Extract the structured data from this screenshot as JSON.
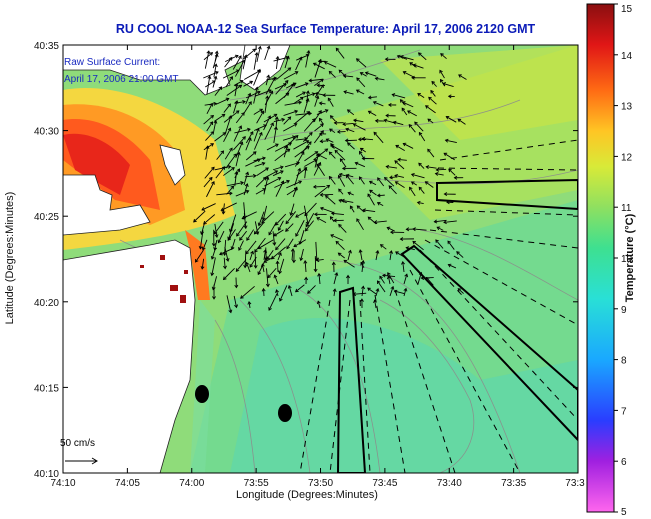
{
  "title": "RU COOL  NOAA-12  Sea Surface Temperature:  April 17, 2006 2120 GMT",
  "inset": {
    "line1": "Raw Surface Current:",
    "line2": "April 17, 2006 21:00 GMT"
  },
  "scale_label": "50 cm/s",
  "x_axis": {
    "label": "Longitude (Degrees:Minutes)",
    "ticks": [
      "74:10",
      "74:05",
      "74:00",
      "73:55",
      "73:50",
      "73:45",
      "73:40",
      "73:35",
      "73:3"
    ]
  },
  "y_axis": {
    "label": "Latitude (Degrees:Minutes)",
    "ticks": [
      "40:35",
      "40:30",
      "40:25",
      "40:20",
      "40:15",
      "40:10"
    ]
  },
  "colorbar": {
    "label": "Temperature (°C)",
    "ticks": [
      "15",
      "14",
      "13",
      "12",
      "11",
      "10",
      "9",
      "8",
      "7",
      "6",
      "5"
    ],
    "range": [
      5,
      15
    ],
    "colors": [
      "#ff33dd",
      "#7a1ae6",
      "#1438ff",
      "#15b3ff",
      "#2ee0c0",
      "#7fe06a",
      "#b4e845",
      "#f2e62b",
      "#ffa019",
      "#f23312",
      "#8a1010"
    ]
  },
  "colors": {
    "title": "#0b1bb8",
    "inset_text": "#1a2ac0",
    "land": "#ffffff",
    "ocean_base": "#8fdc7a",
    "contour": "#8c8c8c"
  }
}
